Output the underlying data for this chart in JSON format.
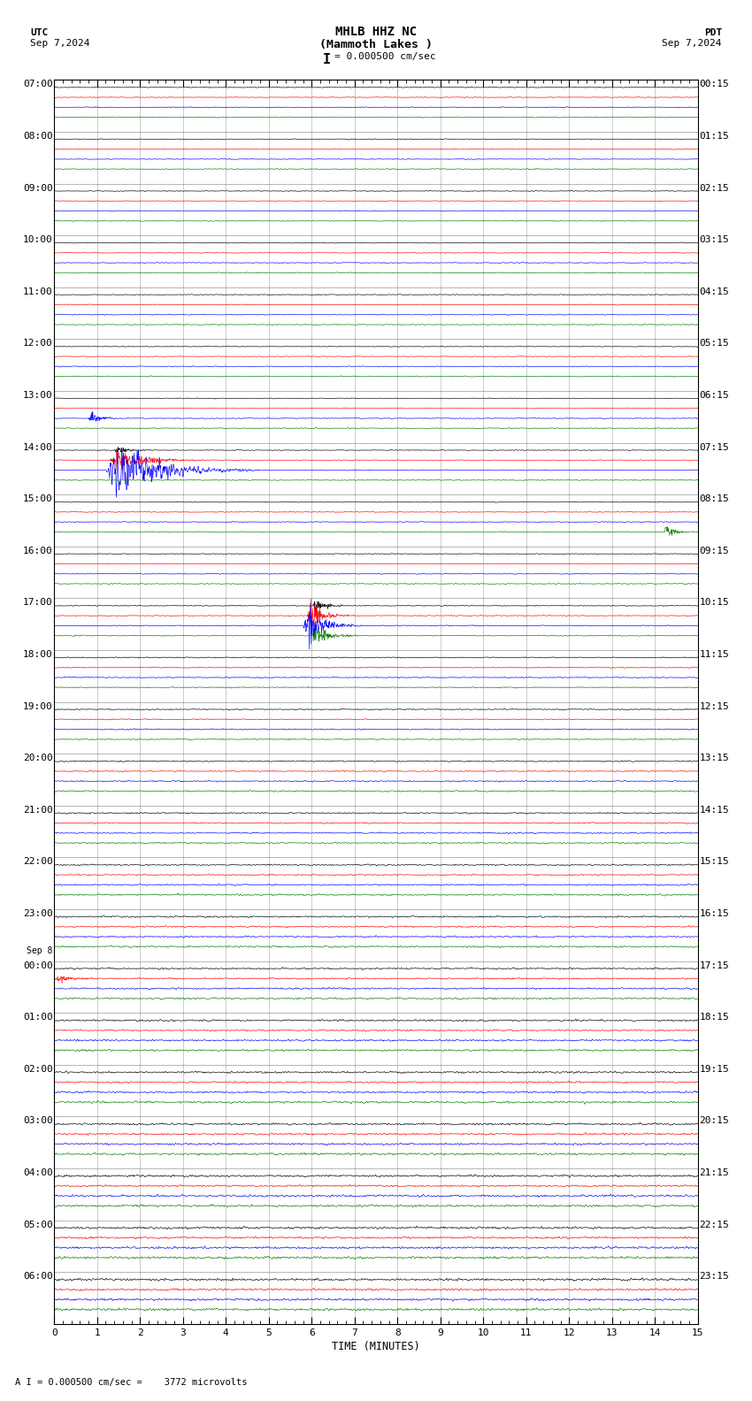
{
  "title_line1": "MHLB HHZ NC",
  "title_line2": "(Mammoth Lakes )",
  "scale_text": "= 0.000500 cm/sec",
  "scale_bar": "I",
  "utc_label": "UTC",
  "utc_date": "Sep 7,2024",
  "pdt_label": "PDT",
  "pdt_date": "Sep 7,2024",
  "footer_text": "A I = 0.000500 cm/sec =    3772 microvolts",
  "xlabel": "TIME (MINUTES)",
  "bg_color": "#ffffff",
  "grid_color": "#aaaaaa",
  "trace_colors": [
    "black",
    "red",
    "blue",
    "green"
  ],
  "left_labels": [
    "07:00",
    "08:00",
    "09:00",
    "10:00",
    "11:00",
    "12:00",
    "13:00",
    "14:00",
    "15:00",
    "16:00",
    "17:00",
    "18:00",
    "19:00",
    "20:00",
    "21:00",
    "22:00",
    "23:00",
    "00:00",
    "01:00",
    "02:00",
    "03:00",
    "04:00",
    "05:00",
    "06:00"
  ],
  "sep8_row": 17,
  "right_labels": [
    "00:15",
    "01:15",
    "02:15",
    "03:15",
    "04:15",
    "05:15",
    "06:15",
    "07:15",
    "08:15",
    "09:15",
    "10:15",
    "11:15",
    "12:15",
    "13:15",
    "14:15",
    "15:15",
    "16:15",
    "17:15",
    "18:15",
    "19:15",
    "20:15",
    "21:15",
    "22:15",
    "23:15"
  ],
  "n_rows": 24,
  "n_traces_per_row": 4,
  "x_min": 0,
  "x_max": 15,
  "x_ticks": [
    0,
    1,
    2,
    3,
    4,
    5,
    6,
    7,
    8,
    9,
    10,
    11,
    12,
    13,
    14,
    15
  ],
  "noise_scale": 0.006,
  "title_fontsize": 10,
  "label_fontsize": 8,
  "footer_fontsize": 7.5
}
